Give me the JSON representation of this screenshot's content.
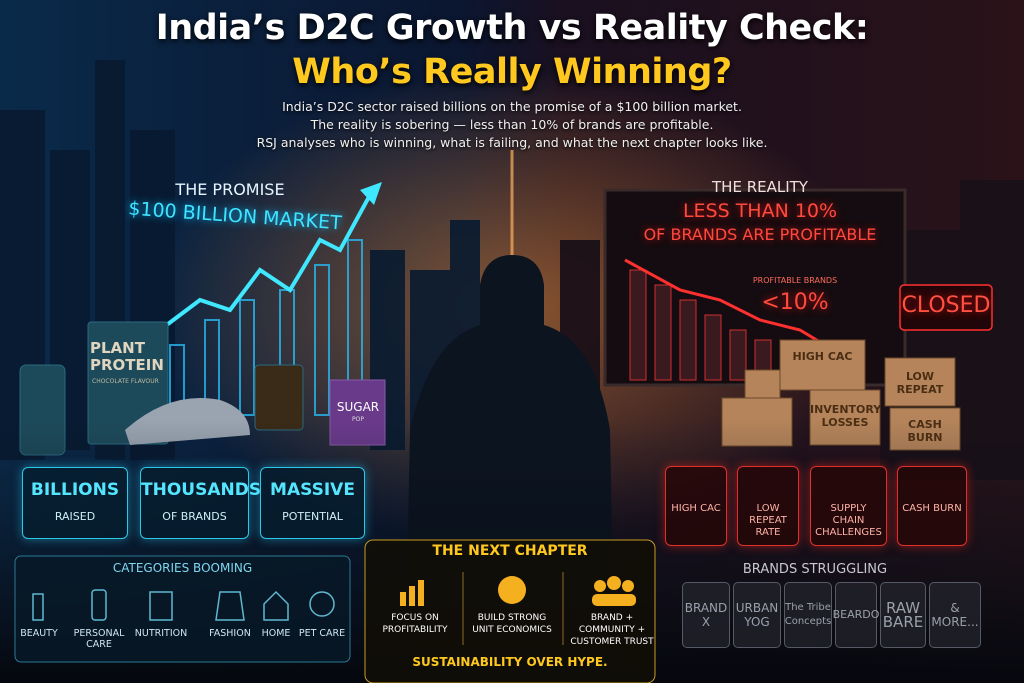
{
  "header": {
    "title": "India’s D2C Growth vs Reality Check:",
    "title_highlight": "Who’s Really Winning?",
    "subtitle": [
      "India’s D2C sector raised billions on the promise of a $100 billion market.",
      "The reality is sobering — less than 10% of brands are profitable.",
      "RSJ analyses who is winning, what is failing, and what the next chapter looks like."
    ]
  },
  "promise": {
    "label": "THE PROMISE",
    "headline": "$100 BILLION MARKET",
    "products": [
      "PLANT PROTEIN",
      "CHOCOLATE FLAVOUR",
      "SUGAR",
      "POP"
    ],
    "stats": [
      {
        "value": "BILLIONS",
        "label": "RAISED"
      },
      {
        "value": "THOUSANDS",
        "label": "OF BRANDS"
      },
      {
        "value": "MASSIVE",
        "label": "POTENTIAL"
      }
    ]
  },
  "categories": {
    "title": "CATEGORIES BOOMING",
    "items": [
      "BEAUTY",
      "PERSONAL CARE",
      "NUTRITION",
      "FASHION",
      "HOME",
      "PET CARE"
    ]
  },
  "reality": {
    "label": "THE REALITY",
    "headline": [
      "LESS THAN 10%",
      "OF BRANDS ARE PROFITABLE"
    ],
    "chart_label": "PROFITABLE BRANDS",
    "chart_value": "<10%",
    "sign": "CLOSED",
    "boxes": [
      "HIGH CAC",
      "LOW REPEAT",
      "INVENTORY LOSSES",
      "CASH BURN"
    ],
    "challenges": [
      "HIGH CAC",
      "LOW REPEAT RATE",
      "SUPPLY CHAIN CHALLENGES",
      "CASH BURN"
    ]
  },
  "struggling": {
    "title": "BRANDS STRUGGLING",
    "brands": [
      "BRAND X",
      "URBAN YOG",
      "The Tribe Concepts",
      "BEARDO",
      "RAW BARE",
      "& MORE..."
    ]
  },
  "next_chapter": {
    "title": "THE NEXT CHAPTER",
    "pillars": [
      "FOCUS ON PROFITABILITY",
      "BUILD STRONG UNIT ECONOMICS",
      "BRAND + COMMUNITY + CUSTOMER TRUST"
    ],
    "tagline": "SUSTAINABILITY OVER HYPE."
  }
}
